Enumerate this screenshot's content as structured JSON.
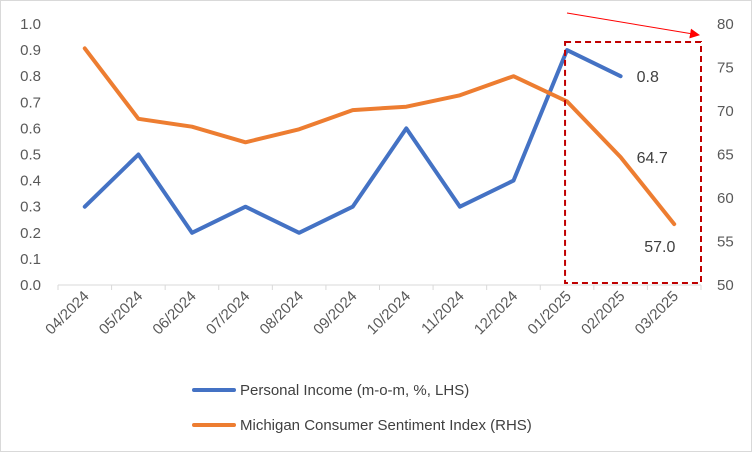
{
  "chart_data": {
    "type": "line",
    "categories": [
      "04/2024",
      "05/2024",
      "06/2024",
      "07/2024",
      "08/2024",
      "09/2024",
      "10/2024",
      "11/2024",
      "12/2024",
      "01/2025",
      "02/2025",
      "03/2025"
    ],
    "series": [
      {
        "name": "Personal Income (m-o-m, %, LHS)",
        "axis": "left",
        "color": "#4472c4",
        "values": [
          0.3,
          0.5,
          0.2,
          0.3,
          0.2,
          0.3,
          0.6,
          0.3,
          0.4,
          0.9,
          0.8,
          null
        ],
        "data_labels": [
          {
            "index": 10,
            "text": "0.8"
          }
        ]
      },
      {
        "name": "Michigan Consumer Sentiment Index (RHS)",
        "axis": "right",
        "color": "#ed7d31",
        "values": [
          77.2,
          69.1,
          68.2,
          66.4,
          67.9,
          70.1,
          70.5,
          71.8,
          74.0,
          71.1,
          64.7,
          57.0
        ],
        "data_labels": [
          {
            "index": 10,
            "text": "64.7"
          },
          {
            "index": 11,
            "text": "57.0"
          }
        ]
      }
    ],
    "y_left": {
      "min": 0,
      "max": 1.0,
      "ticks": [
        "0.0",
        "0.1",
        "0.2",
        "0.3",
        "0.4",
        "0.5",
        "0.6",
        "0.7",
        "0.8",
        "0.9",
        "1.0"
      ]
    },
    "y_right": {
      "min": 50,
      "max": 80,
      "ticks": [
        "50",
        "55",
        "60",
        "65",
        "70",
        "75",
        "80"
      ]
    },
    "annotations": {
      "highlight_box": {
        "from_category": "01/2025",
        "to_category": "03/2025",
        "color": "#c00000",
        "style": "dashed"
      },
      "arrow": {
        "color": "#ff0000",
        "direction": "right"
      }
    },
    "grid": false,
    "legend": "bottom"
  }
}
